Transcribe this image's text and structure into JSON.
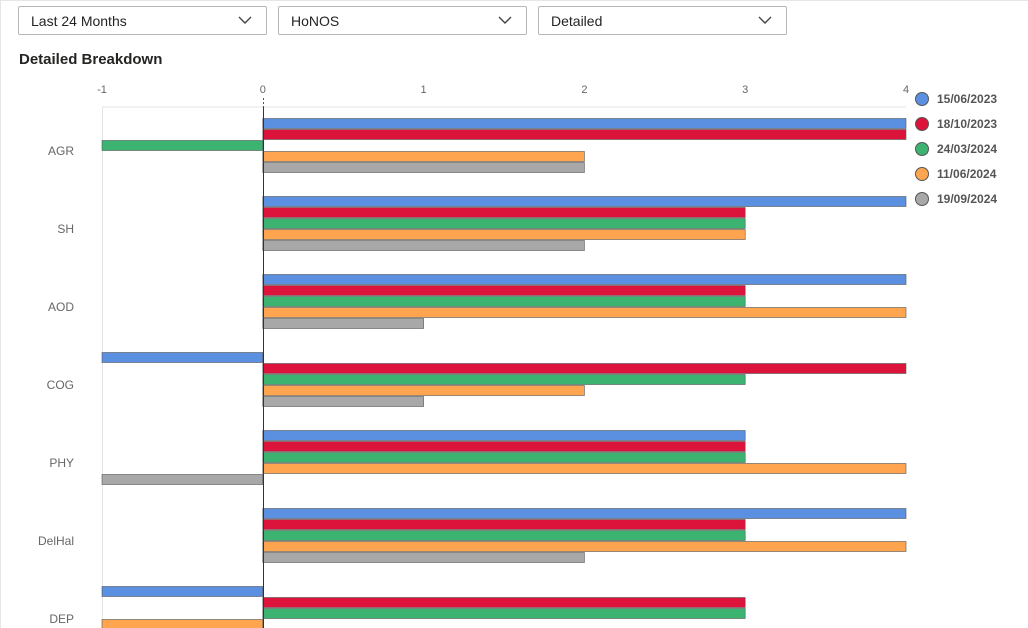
{
  "filters": {
    "period": "Last 24 Months",
    "measure": "HoNOS",
    "view": "Detailed"
  },
  "section_title": "Detailed Breakdown",
  "colors": {
    "15/06/2023": "#5b8fe0",
    "18/10/2023": "#dc143c",
    "24/03/2024": "#3cb371",
    "11/06/2024": "#ffa54f",
    "19/09/2024": "#a8a8a8"
  },
  "chart_data": {
    "type": "bar",
    "orientation": "horizontal",
    "title": "",
    "xlabel": "",
    "ylabel": "",
    "xlim": [
      -1,
      4
    ],
    "x_ticks": [
      -1,
      0,
      1,
      2,
      3,
      4
    ],
    "legend_position": "top-right",
    "categories": [
      "AGR",
      "SH",
      "AOD",
      "COG",
      "PHY",
      "DelHal",
      "DEP"
    ],
    "series": [
      {
        "name": "15/06/2023",
        "values": [
          4,
          4,
          4,
          -1,
          3,
          4,
          -1
        ]
      },
      {
        "name": "18/10/2023",
        "values": [
          4,
          3,
          3,
          4,
          3,
          3,
          3
        ]
      },
      {
        "name": "24/03/2024",
        "values": [
          -1,
          3,
          3,
          3,
          3,
          3,
          3
        ]
      },
      {
        "name": "11/06/2024",
        "values": [
          2,
          3,
          4,
          2,
          4,
          4,
          -1
        ]
      },
      {
        "name": "19/09/2024",
        "values": [
          2,
          2,
          1,
          1,
          -1,
          2,
          null
        ]
      }
    ]
  }
}
